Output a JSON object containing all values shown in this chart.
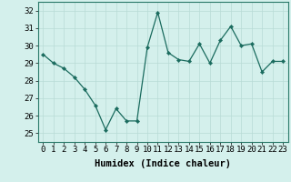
{
  "x": [
    0,
    1,
    2,
    3,
    4,
    5,
    6,
    7,
    8,
    9,
    10,
    11,
    12,
    13,
    14,
    15,
    16,
    17,
    18,
    19,
    20,
    21,
    22,
    23
  ],
  "y": [
    29.5,
    29.0,
    28.7,
    28.2,
    27.5,
    26.6,
    25.2,
    26.4,
    25.7,
    25.7,
    29.9,
    31.9,
    29.6,
    29.2,
    29.1,
    30.1,
    29.0,
    30.3,
    31.1,
    30.0,
    30.1,
    28.5,
    29.1,
    29.1
  ],
  "xlabel": "Humidex (Indice chaleur)",
  "ylim": [
    24.5,
    32.5
  ],
  "xlim": [
    -0.5,
    23.5
  ],
  "yticks": [
    25,
    26,
    27,
    28,
    29,
    30,
    31,
    32
  ],
  "xticks": [
    0,
    1,
    2,
    3,
    4,
    5,
    6,
    7,
    8,
    9,
    10,
    11,
    12,
    13,
    14,
    15,
    16,
    17,
    18,
    19,
    20,
    21,
    22,
    23
  ],
  "line_color": "#1a6b5e",
  "marker_color": "#1a6b5e",
  "bg_color": "#d4f0ec",
  "grid_color": "#b8dbd6",
  "axis_label_fontsize": 7.5,
  "tick_fontsize": 6.5
}
